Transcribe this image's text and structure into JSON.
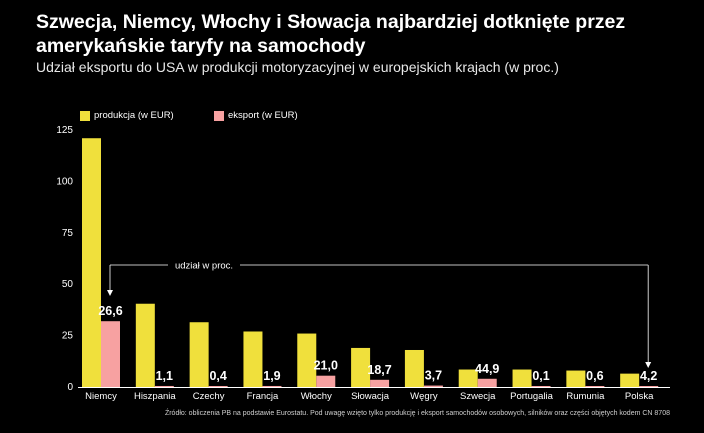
{
  "title": "Szwecja, Niemcy, Włochy i Słowacja najbardziej dotknięte przez amerykańskie taryfy na samochody",
  "subtitle": "Udział eksportu do USA w produkcji motoryzacyjnej w europejskich krajach (w proc.)",
  "source": "Źródło: obliczenia PB na podstawie Eurostatu. Pod uwagę wzięto tylko produkcję i eksport samochodów osobowych, silników oraz części objętych kodem CN 8708",
  "colors": {
    "production": "#f0e03c",
    "export": "#f7a1a1",
    "background": "#000000",
    "axis": "#ffffff"
  },
  "chart_data": {
    "type": "bar",
    "categories": [
      "Niemcy",
      "Hiszpania",
      "Czechy",
      "Francja",
      "Włochy",
      "Słowacja",
      "Węgry",
      "Szwecja",
      "Portugalia",
      "Rumunia",
      "Polska"
    ],
    "series": [
      {
        "name": "produkcja (w EUR)",
        "values": [
          121,
          40.5,
          31.5,
          27,
          26,
          19,
          18,
          8.5,
          8.5,
          8,
          6.5
        ]
      },
      {
        "name": "eksport (w EUR)",
        "values": [
          32,
          0.5,
          0.1,
          0.5,
          5.5,
          3.5,
          0.7,
          4,
          0.01,
          0.05,
          0.3
        ]
      }
    ],
    "share_labels": [
      "26,6",
      "1,1",
      "0,4",
      "1,9",
      "21,0",
      "18,7",
      "3,7",
      "44,9",
      "0,1",
      "0,6",
      "4,2"
    ],
    "annotation": "udział w proc.",
    "yticks": [
      0,
      25,
      50,
      75,
      100,
      125
    ],
    "ylim": [
      0,
      125
    ],
    "grid": false,
    "legend_position": "top-left"
  }
}
